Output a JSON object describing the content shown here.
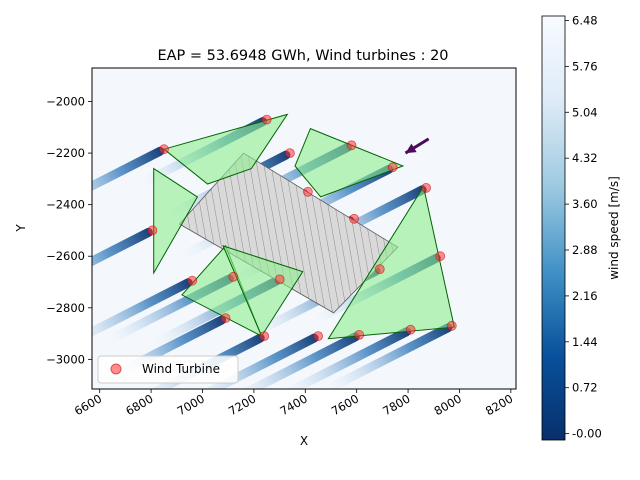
{
  "chart_data": {
    "type": "scatter",
    "title": "EAP = 53.6948 GWh, Wind turbines : 20",
    "xlabel": "X",
    "ylabel": "Y",
    "xlim": [
      6570,
      8220
    ],
    "ylim": [
      -3115,
      -1870
    ],
    "x_ticks": [
      6600,
      6800,
      7000,
      7200,
      7400,
      7600,
      7800,
      8000,
      8200
    ],
    "y_ticks": [
      -3000,
      -2800,
      -2600,
      -2400,
      -2200,
      -2000
    ],
    "legend": {
      "label": "Wind Turbine",
      "position": "lower-left"
    },
    "colorbar": {
      "label": "wind speed [m/s]",
      "range": [
        -0.1,
        6.55
      ],
      "ticks": [
        "-0.00",
        "0.72",
        "1.44",
        "2.16",
        "2.88",
        "3.60",
        "4.32",
        "5.04",
        "5.76",
        "6.48"
      ],
      "colormap": "Blues_r"
    },
    "colors": {
      "turbine": "#ff3333",
      "turbine_edge": "#cc0000",
      "zone_fill": "#90ee90",
      "zone_edge": "#006400",
      "exclusion_fill": "#d3d3d3",
      "arrow": "#4b0a5a",
      "wake_dark": "#0a3f7a",
      "background": "#f4f8fd"
    },
    "turbines": [
      {
        "x": 7250,
        "y": -2070
      },
      {
        "x": 6850,
        "y": -2185
      },
      {
        "x": 7340,
        "y": -2200
      },
      {
        "x": 7580,
        "y": -2170
      },
      {
        "x": 7740,
        "y": -2255
      },
      {
        "x": 7410,
        "y": -2350
      },
      {
        "x": 7870,
        "y": -2335
      },
      {
        "x": 7590,
        "y": -2455
      },
      {
        "x": 6805,
        "y": -2500
      },
      {
        "x": 7925,
        "y": -2600
      },
      {
        "x": 7690,
        "y": -2650
      },
      {
        "x": 7120,
        "y": -2680
      },
      {
        "x": 7300,
        "y": -2690
      },
      {
        "x": 6960,
        "y": -2695
      },
      {
        "x": 7090,
        "y": -2840
      },
      {
        "x": 7810,
        "y": -2885
      },
      {
        "x": 7970,
        "y": -2870
      },
      {
        "x": 7240,
        "y": -2910
      },
      {
        "x": 7450,
        "y": -2910
      },
      {
        "x": 7610,
        "y": -2905
      }
    ],
    "zones": [
      [
        [
          6850,
          -2185
        ],
        [
          7330,
          -2050
        ],
        [
          7190,
          -2260
        ],
        [
          7020,
          -2320
        ],
        [
          6850,
          -2185
        ]
      ],
      [
        [
          6810,
          -2260
        ],
        [
          6980,
          -2370
        ],
        [
          6810,
          -2665
        ],
        [
          6810,
          -2260
        ]
      ],
      [
        [
          7420,
          -2105
        ],
        [
          7780,
          -2250
        ],
        [
          7460,
          -2370
        ],
        [
          7360,
          -2250
        ],
        [
          7420,
          -2105
        ]
      ],
      [
        [
          6920,
          -2750
        ],
        [
          7090,
          -2560
        ],
        [
          7230,
          -2910
        ],
        [
          6920,
          -2750
        ]
      ],
      [
        [
          7080,
          -2560
        ],
        [
          7390,
          -2660
        ],
        [
          7230,
          -2910
        ],
        [
          7080,
          -2560
        ]
      ],
      [
        [
          7860,
          -2330
        ],
        [
          7980,
          -2875
        ],
        [
          7490,
          -2920
        ],
        [
          7860,
          -2330
        ]
      ]
    ],
    "exclusion_zone": [
      [
        6910,
        -2475
      ],
      [
        7160,
        -2200
      ],
      [
        7760,
        -2565
      ],
      [
        7510,
        -2820
      ],
      [
        6910,
        -2475
      ]
    ],
    "wind_direction": {
      "from": [
        7880,
        -2145
      ],
      "to": [
        7790,
        -2200
      ]
    }
  }
}
